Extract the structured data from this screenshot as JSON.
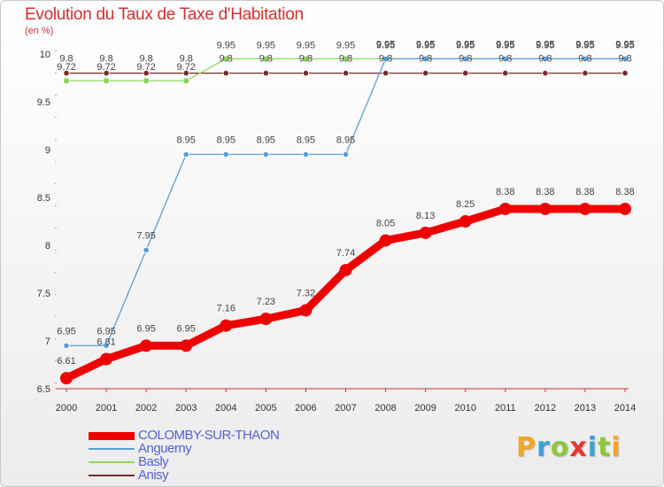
{
  "brand": {
    "text": "Proxiti",
    "colors": [
      "#f5a623",
      "#3da0d8",
      "#8dc63f",
      "#e8382f",
      "#3da0d8",
      "#8dc63f",
      "#f5a623"
    ]
  },
  "chart_data": {
    "type": "line",
    "title": "Evolution du Taux de Taxe d'Habitation",
    "unit_label": "(en %)",
    "xlabel": "",
    "ylabel": "",
    "x": [
      "2000",
      "2001",
      "2002",
      "2003",
      "2004",
      "2005",
      "2006",
      "2007",
      "2008",
      "2009",
      "2010",
      "2011",
      "2012",
      "2013",
      "2014"
    ],
    "ylim": [
      6.5,
      10
    ],
    "yticks": [
      6.5,
      7,
      7.5,
      8,
      8.5,
      9,
      9.5,
      10
    ],
    "ytick_labels": [
      "6.5",
      "7",
      "7.5",
      "8",
      "8.5",
      "9",
      "9.5",
      "10"
    ],
    "grid": false,
    "legend_position": "bottom-left",
    "series": [
      {
        "name": "COLOMBY-SUR-THAON",
        "color": "#ee0000",
        "values": [
          6.61,
          6.81,
          6.95,
          6.95,
          7.16,
          7.23,
          7.32,
          7.74,
          8.05,
          8.13,
          8.25,
          8.38,
          8.38,
          8.38,
          8.38
        ],
        "labels": [
          "6.61",
          "6.81",
          "6.95",
          "6.95",
          "7.16",
          "7.23",
          "7.32",
          "7.74",
          "8.05",
          "8.13",
          "8.25",
          "8.38",
          "8.38",
          "8.38",
          "8.38"
        ]
      },
      {
        "name": "Anguerny",
        "color": "#5a9fd4",
        "values": [
          6.95,
          6.95,
          7.95,
          8.95,
          8.95,
          8.95,
          8.95,
          8.95,
          9.95,
          9.95,
          9.95,
          9.95,
          9.95,
          9.95,
          9.95
        ],
        "labels": [
          "6.95",
          "6.95",
          "7.95",
          "8.95",
          "8.95",
          "8.95",
          "8.95",
          "8.95",
          "9.95",
          "9.95",
          "9.95",
          "9.95",
          "9.95",
          "9.95",
          "9.95"
        ]
      },
      {
        "name": "Basly",
        "color": "#8ed65a",
        "values": [
          9.72,
          9.72,
          9.72,
          9.72,
          9.95,
          9.95,
          9.95,
          9.95,
          9.95,
          9.95,
          9.95,
          9.95,
          9.95,
          9.95,
          9.95
        ],
        "labels": [
          "9.72",
          "9.72",
          "9.72",
          "9.72",
          "9.95",
          "9.95",
          "9.95",
          "9.95",
          "9.95",
          "9.95",
          "9.95",
          "9.95",
          "9.95",
          "9.95",
          "9.95"
        ]
      },
      {
        "name": "Anisy",
        "color": "#7a2a2a",
        "values": [
          9.8,
          9.8,
          9.8,
          9.8,
          9.8,
          9.8,
          9.8,
          9.8,
          9.8,
          9.8,
          9.8,
          9.8,
          9.8,
          9.8,
          9.8
        ],
        "labels": [
          "9.8",
          "9.8",
          "9.8",
          "9.8",
          "9.8",
          "9.8",
          "9.8",
          "9.8",
          "9.8",
          "9.8",
          "9.8",
          "9.8",
          "9.8",
          "9.8",
          "9.8"
        ]
      }
    ]
  }
}
